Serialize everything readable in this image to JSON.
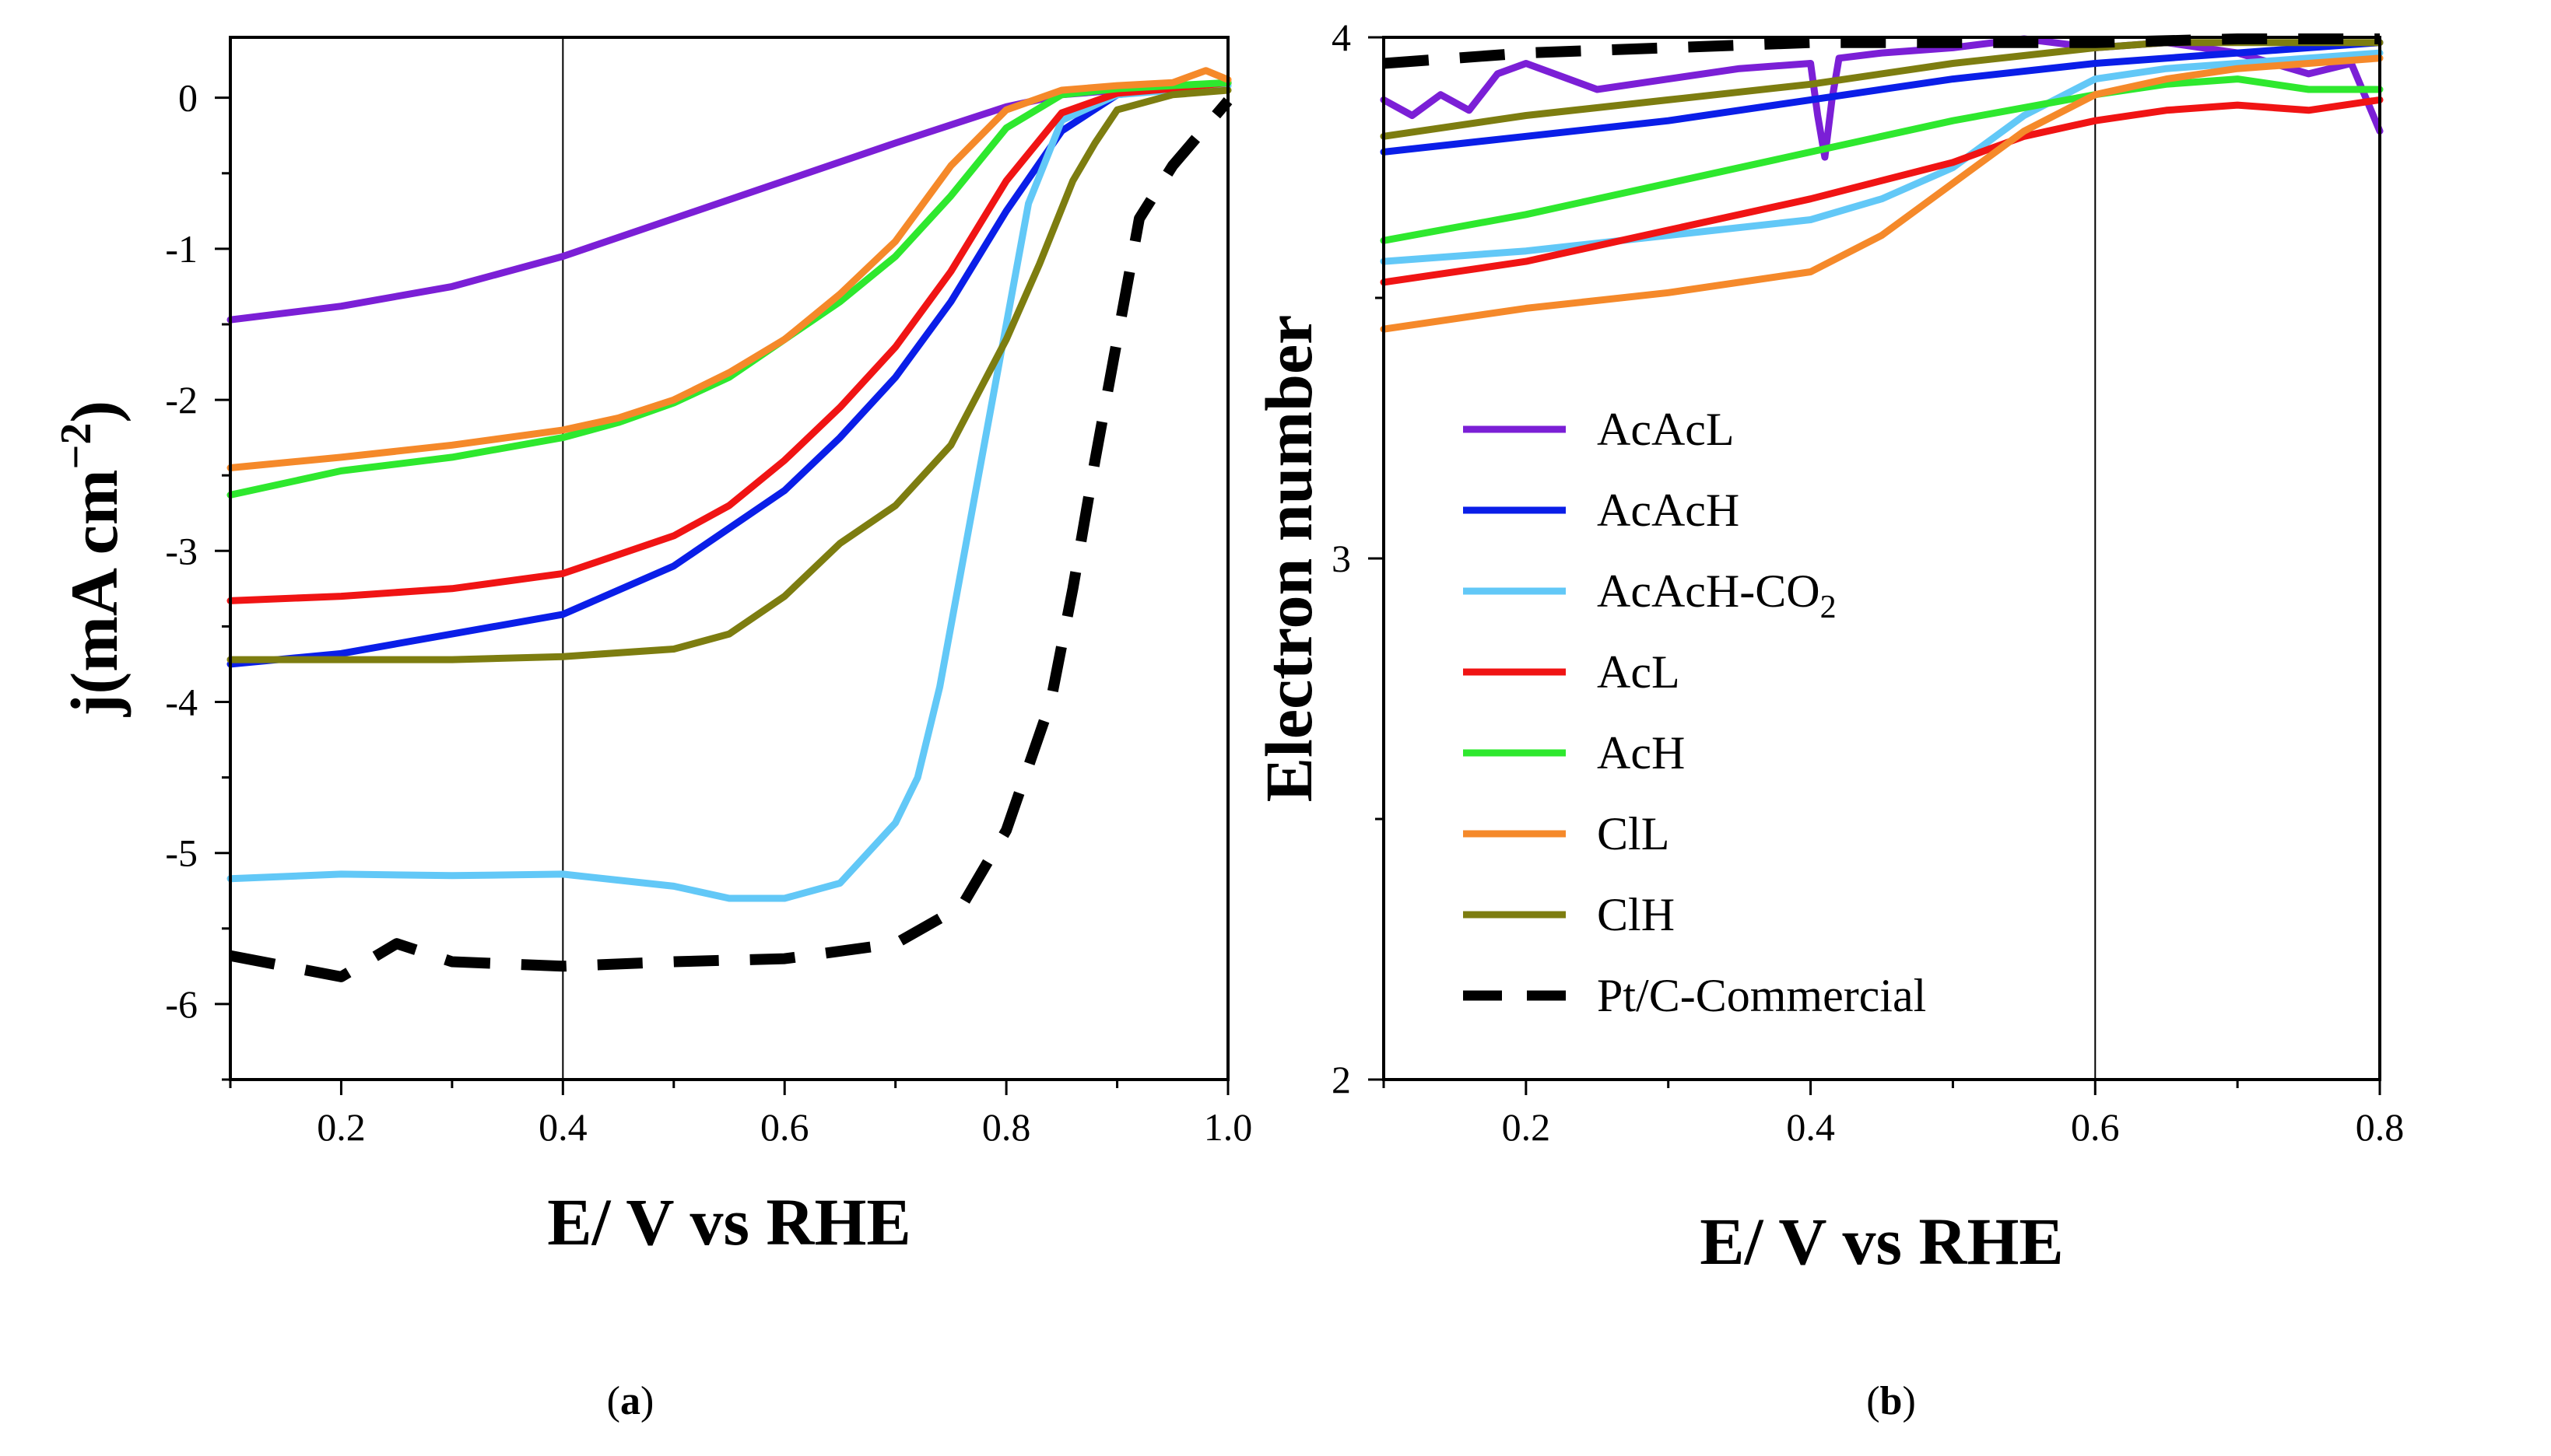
{
  "chart_data": [
    {
      "type": "line",
      "panel": "a",
      "caption_letter": "a",
      "xlabel": "E/ V vs RHE",
      "ylabel_main": "j(mA cm",
      "ylabel_sup": "−2",
      "ylabel_close": ")",
      "xlim": [
        0.1,
        1.0
      ],
      "ylim": [
        -6.5,
        0.4
      ],
      "xticks": [
        0.2,
        0.4,
        0.6,
        0.8,
        1.0
      ],
      "xtick_labels": [
        "0.2",
        "0.4",
        "0.6",
        "0.8",
        "1.0"
      ],
      "yticks": [
        0,
        -1,
        -2,
        -3,
        -4,
        -5,
        -6
      ],
      "ytick_labels": [
        "0",
        "-1",
        "-2",
        "-3",
        "-4",
        "-5",
        "-6"
      ],
      "vline": 0.4,
      "series": [
        {
          "name": "AcAcL",
          "color": "#7b1fd6",
          "dashed": false,
          "x": [
            0.1,
            0.2,
            0.3,
            0.4,
            0.5,
            0.6,
            0.7,
            0.8,
            0.85,
            0.9,
            0.95,
            1.0
          ],
          "y": [
            -1.47,
            -1.38,
            -1.25,
            -1.05,
            -0.8,
            -0.55,
            -0.3,
            -0.06,
            0.02,
            0.05,
            0.07,
            0.1
          ]
        },
        {
          "name": "AcAcH",
          "color": "#0a1ee8",
          "dashed": false,
          "x": [
            0.1,
            0.2,
            0.3,
            0.4,
            0.5,
            0.6,
            0.65,
            0.7,
            0.75,
            0.8,
            0.85,
            0.9,
            0.95,
            1.0
          ],
          "y": [
            -3.75,
            -3.68,
            -3.55,
            -3.42,
            -3.1,
            -2.6,
            -2.25,
            -1.85,
            -1.35,
            -0.75,
            -0.22,
            0.02,
            0.06,
            0.1
          ]
        },
        {
          "name": "AcAcH-CO2",
          "color": "#62c8f7",
          "dashed": false,
          "x": [
            0.1,
            0.2,
            0.3,
            0.4,
            0.5,
            0.55,
            0.6,
            0.65,
            0.7,
            0.72,
            0.74,
            0.76,
            0.78,
            0.8,
            0.82,
            0.85,
            0.9,
            0.95,
            1.0
          ],
          "y": [
            -5.17,
            -5.14,
            -5.15,
            -5.14,
            -5.22,
            -5.3,
            -5.3,
            -5.2,
            -4.8,
            -4.5,
            -3.9,
            -3.1,
            -2.3,
            -1.5,
            -0.7,
            -0.15,
            0.02,
            0.05,
            0.08
          ]
        },
        {
          "name": "AcL",
          "color": "#f01414",
          "dashed": false,
          "x": [
            0.1,
            0.2,
            0.3,
            0.4,
            0.5,
            0.55,
            0.6,
            0.65,
            0.7,
            0.75,
            0.8,
            0.85,
            0.9,
            0.95,
            1.0
          ],
          "y": [
            -3.33,
            -3.3,
            -3.25,
            -3.15,
            -2.9,
            -2.7,
            -2.4,
            -2.05,
            -1.65,
            -1.15,
            -0.55,
            -0.1,
            0.03,
            0.06,
            0.1
          ]
        },
        {
          "name": "AcH",
          "color": "#2ee82e",
          "dashed": false,
          "x": [
            0.1,
            0.2,
            0.3,
            0.4,
            0.45,
            0.5,
            0.55,
            0.6,
            0.65,
            0.7,
            0.75,
            0.8,
            0.85,
            0.9,
            0.95,
            1.0
          ],
          "y": [
            -2.63,
            -2.47,
            -2.38,
            -2.25,
            -2.15,
            -2.02,
            -1.85,
            -1.6,
            -1.35,
            -1.05,
            -0.65,
            -0.2,
            0.02,
            0.06,
            0.08,
            0.1
          ]
        },
        {
          "name": "ClL",
          "color": "#f5892a",
          "dashed": false,
          "x": [
            0.1,
            0.2,
            0.3,
            0.4,
            0.45,
            0.5,
            0.55,
            0.6,
            0.65,
            0.7,
            0.75,
            0.8,
            0.85,
            0.9,
            0.95,
            0.98,
            1.0
          ],
          "y": [
            -2.45,
            -2.38,
            -2.3,
            -2.2,
            -2.12,
            -2.0,
            -1.82,
            -1.6,
            -1.3,
            -0.95,
            -0.45,
            -0.08,
            0.05,
            0.08,
            0.1,
            0.18,
            0.12
          ]
        },
        {
          "name": "ClH",
          "color": "#7d7d10",
          "dashed": false,
          "x": [
            0.1,
            0.2,
            0.3,
            0.4,
            0.5,
            0.55,
            0.6,
            0.65,
            0.7,
            0.75,
            0.8,
            0.83,
            0.86,
            0.88,
            0.9,
            0.95,
            1.0
          ],
          "y": [
            -3.72,
            -3.72,
            -3.72,
            -3.7,
            -3.65,
            -3.55,
            -3.3,
            -2.95,
            -2.7,
            -2.3,
            -1.6,
            -1.1,
            -0.55,
            -0.3,
            -0.08,
            0.02,
            0.05
          ]
        },
        {
          "name": "Pt/C-Commercial",
          "color": "#000000",
          "dashed": true,
          "x": [
            0.1,
            0.2,
            0.25,
            0.3,
            0.4,
            0.5,
            0.6,
            0.7,
            0.76,
            0.8,
            0.84,
            0.86,
            0.88,
            0.9,
            0.92,
            0.95,
            1.0
          ],
          "y": [
            -5.68,
            -5.82,
            -5.6,
            -5.72,
            -5.75,
            -5.72,
            -5.7,
            -5.6,
            -5.35,
            -4.85,
            -4.0,
            -3.25,
            -2.4,
            -1.6,
            -0.8,
            -0.45,
            -0.02
          ]
        }
      ]
    },
    {
      "type": "line",
      "panel": "b",
      "caption_letter": "b",
      "xlabel": "E/ V vs RHE",
      "ylabel": "Electron number",
      "xlim": [
        0.1,
        0.8
      ],
      "ylim": [
        2,
        4
      ],
      "xticks": [
        0.2,
        0.4,
        0.6,
        0.8
      ],
      "xtick_labels": [
        "0.2",
        "0.4",
        "0.6",
        "0.8"
      ],
      "yticks": [
        2,
        3,
        4
      ],
      "ytick_labels": [
        "2",
        "3",
        "4"
      ],
      "vline": 0.6,
      "legend_position": "left-center",
      "series": [
        {
          "name": "AcAcL",
          "legend_main": "AcAcL",
          "legend_sub": "",
          "color": "#7b1fd6",
          "dashed": false,
          "x": [
            0.1,
            0.12,
            0.14,
            0.16,
            0.18,
            0.2,
            0.25,
            0.3,
            0.35,
            0.4,
            0.405,
            0.41,
            0.415,
            0.42,
            0.45,
            0.5,
            0.55,
            0.6,
            0.65,
            0.7,
            0.75,
            0.78,
            0.8
          ],
          "y": [
            3.88,
            3.85,
            3.89,
            3.86,
            3.93,
            3.95,
            3.9,
            3.92,
            3.94,
            3.95,
            3.85,
            3.77,
            3.88,
            3.96,
            3.97,
            3.98,
            4.0,
            3.98,
            3.99,
            3.97,
            3.93,
            3.95,
            3.82
          ]
        },
        {
          "name": "AcAcH",
          "legend_main": "AcAcH",
          "legend_sub": "",
          "color": "#0a1ee8",
          "dashed": false,
          "x": [
            0.1,
            0.2,
            0.3,
            0.4,
            0.5,
            0.6,
            0.7,
            0.8
          ],
          "y": [
            3.78,
            3.81,
            3.84,
            3.88,
            3.92,
            3.95,
            3.97,
            3.99
          ]
        },
        {
          "name": "AcAcH-CO2",
          "legend_main": "AcAcH-CO",
          "legend_sub": "2",
          "color": "#62c8f7",
          "dashed": false,
          "x": [
            0.1,
            0.2,
            0.3,
            0.4,
            0.45,
            0.5,
            0.55,
            0.6,
            0.65,
            0.7,
            0.75,
            0.8
          ],
          "y": [
            3.57,
            3.59,
            3.62,
            3.65,
            3.69,
            3.75,
            3.85,
            3.92,
            3.94,
            3.95,
            3.96,
            3.97
          ]
        },
        {
          "name": "AcL",
          "legend_main": "AcL",
          "legend_sub": "",
          "color": "#f01414",
          "dashed": false,
          "x": [
            0.1,
            0.2,
            0.3,
            0.4,
            0.5,
            0.55,
            0.6,
            0.65,
            0.7,
            0.75,
            0.8
          ],
          "y": [
            3.53,
            3.57,
            3.63,
            3.69,
            3.76,
            3.81,
            3.84,
            3.86,
            3.87,
            3.86,
            3.88
          ]
        },
        {
          "name": "AcH",
          "legend_main": "AcH",
          "legend_sub": "",
          "color": "#2ee82e",
          "dashed": false,
          "x": [
            0.1,
            0.2,
            0.3,
            0.4,
            0.5,
            0.6,
            0.65,
            0.7,
            0.75,
            0.8
          ],
          "y": [
            3.61,
            3.66,
            3.72,
            3.78,
            3.84,
            3.89,
            3.91,
            3.92,
            3.9,
            3.9
          ]
        },
        {
          "name": "ClL",
          "legend_main": "ClL",
          "legend_sub": "",
          "color": "#f5892a",
          "dashed": false,
          "x": [
            0.1,
            0.2,
            0.3,
            0.4,
            0.45,
            0.5,
            0.55,
            0.6,
            0.65,
            0.7,
            0.75,
            0.8
          ],
          "y": [
            3.44,
            3.48,
            3.51,
            3.55,
            3.62,
            3.72,
            3.82,
            3.89,
            3.92,
            3.94,
            3.95,
            3.96
          ]
        },
        {
          "name": "ClH",
          "legend_main": "ClH",
          "legend_sub": "",
          "color": "#7d7d10",
          "dashed": false,
          "x": [
            0.1,
            0.2,
            0.3,
            0.4,
            0.5,
            0.6,
            0.65,
            0.7,
            0.8
          ],
          "y": [
            3.81,
            3.85,
            3.88,
            3.91,
            3.95,
            3.98,
            3.99,
            3.99,
            3.99
          ]
        },
        {
          "name": "Pt/C-Commercial",
          "legend_main": "Pt/C-Commercial",
          "legend_sub": "",
          "color": "#000000",
          "dashed": true,
          "x": [
            0.1,
            0.2,
            0.3,
            0.4,
            0.5,
            0.6,
            0.7,
            0.8
          ],
          "y": [
            3.95,
            3.97,
            3.98,
            3.99,
            3.99,
            3.99,
            4.0,
            4.0
          ]
        }
      ]
    }
  ]
}
